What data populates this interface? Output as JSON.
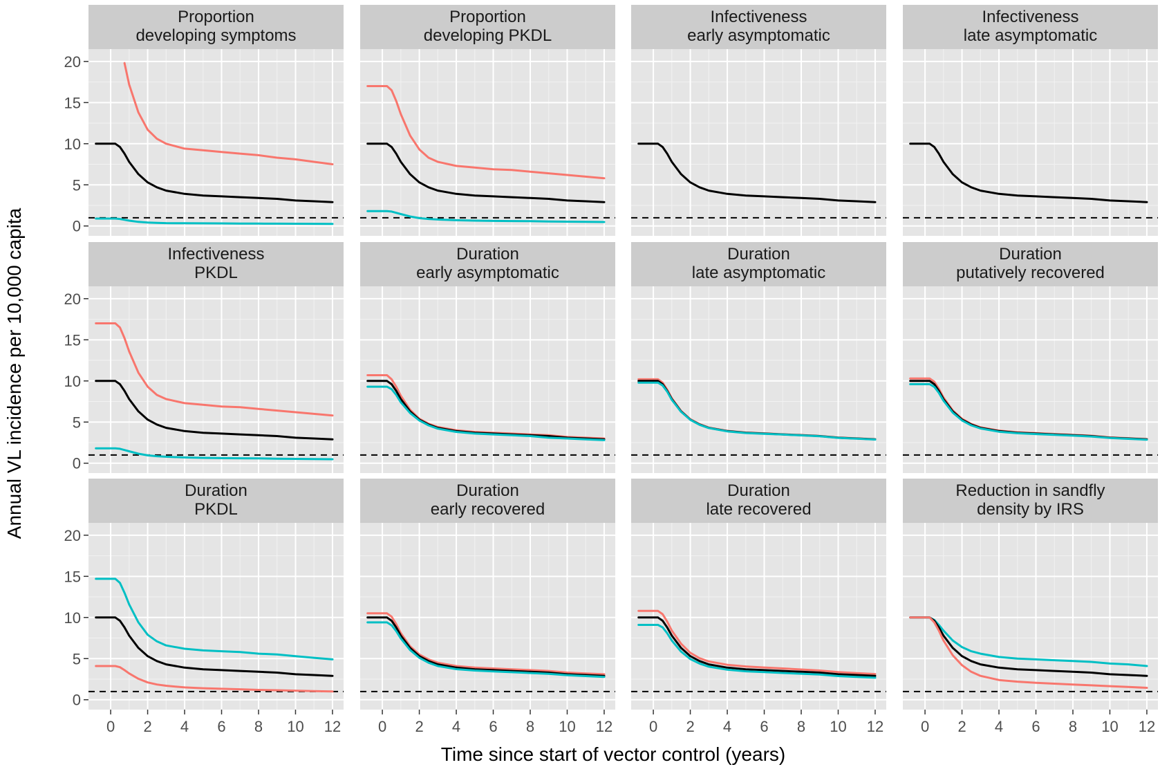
{
  "figure": {
    "xlabel": "Time since start of vector control (years)",
    "ylabel": "Annual VL incidence per 10,000 capita"
  },
  "colors": {
    "baseline": "#000000",
    "series_a": "#F8766D",
    "series_b": "#00BFC4",
    "panel_bg": "#E5E5E5",
    "strip_bg": "#CCCCCC",
    "grid_major": "#FFFFFF",
    "grid_minor": "#F2F2F2",
    "threshold": "#000000"
  },
  "chart_data": {
    "type": "line",
    "layout": {
      "rows": 3,
      "cols": 4
    },
    "xlim": [
      -1.2,
      12.6
    ],
    "ylim": [
      -1.2,
      21.5
    ],
    "x_ticks": [
      0,
      2,
      4,
      6,
      8,
      10,
      12
    ],
    "x_tick_labels": [
      "0",
      "2",
      "4",
      "6",
      "8",
      "10",
      "12"
    ],
    "y_ticks": [
      0,
      5,
      10,
      15,
      20
    ],
    "y_tick_labels": [
      "0",
      "5",
      "10",
      "15",
      "20"
    ],
    "threshold": 1,
    "x": [
      -0.8,
      0,
      0.25,
      0.5,
      0.75,
      1,
      1.5,
      2,
      2.5,
      3,
      4,
      5,
      6,
      7,
      8,
      9,
      10,
      11,
      12
    ],
    "panels": [
      {
        "title_lines": [
          "Proportion",
          "developing symptoms"
        ],
        "series": [
          {
            "color_key": "series_a",
            "start": 0.6,
            "values": [
              null,
              null,
              null,
              null,
              19.8,
              17.2,
              13.8,
              11.7,
              10.6,
              10.0,
              9.4,
              9.2,
              9.0,
              8.8,
              8.6,
              8.3,
              8.1,
              7.8,
              7.5
            ]
          },
          {
            "color_key": "baseline",
            "values": [
              10.0,
              10.0,
              10.0,
              9.6,
              8.8,
              7.8,
              6.3,
              5.3,
              4.7,
              4.3,
              3.9,
              3.7,
              3.6,
              3.5,
              3.4,
              3.3,
              3.1,
              3.0,
              2.9
            ]
          },
          {
            "color_key": "series_b",
            "values": [
              0.9,
              0.9,
              0.9,
              0.85,
              0.75,
              0.65,
              0.5,
              0.42,
              0.38,
              0.35,
              0.33,
              0.32,
              0.31,
              0.3,
              0.29,
              0.28,
              0.27,
              0.26,
              0.25
            ]
          }
        ]
      },
      {
        "title_lines": [
          "Proportion",
          "developing PKDL"
        ],
        "series": [
          {
            "color_key": "series_a",
            "values": [
              17.0,
              17.0,
              17.0,
              16.5,
              15.2,
              13.6,
              11.0,
              9.3,
              8.3,
              7.8,
              7.3,
              7.1,
              6.9,
              6.8,
              6.6,
              6.4,
              6.2,
              6.0,
              5.8
            ]
          },
          {
            "color_key": "baseline",
            "values": [
              10.0,
              10.0,
              10.0,
              9.6,
              8.8,
              7.8,
              6.3,
              5.3,
              4.7,
              4.3,
              3.9,
              3.7,
              3.6,
              3.5,
              3.4,
              3.3,
              3.1,
              3.0,
              2.9
            ]
          },
          {
            "color_key": "series_b",
            "values": [
              1.8,
              1.8,
              1.8,
              1.75,
              1.6,
              1.45,
              1.15,
              0.95,
              0.85,
              0.78,
              0.7,
              0.65,
              0.62,
              0.6,
              0.58,
              0.55,
              0.52,
              0.5,
              0.48
            ]
          }
        ]
      },
      {
        "title_lines": [
          "Infectiveness",
          "early asymptomatic"
        ],
        "series": [
          {
            "color_key": "baseline",
            "values": [
              10.0,
              10.0,
              10.0,
              9.6,
              8.8,
              7.8,
              6.3,
              5.3,
              4.7,
              4.3,
              3.9,
              3.7,
              3.6,
              3.5,
              3.4,
              3.3,
              3.1,
              3.0,
              2.9
            ]
          }
        ]
      },
      {
        "title_lines": [
          "Infectiveness",
          "late asymptomatic"
        ],
        "series": [
          {
            "color_key": "baseline",
            "values": [
              10.0,
              10.0,
              10.0,
              9.6,
              8.8,
              7.8,
              6.3,
              5.3,
              4.7,
              4.3,
              3.9,
              3.7,
              3.6,
              3.5,
              3.4,
              3.3,
              3.1,
              3.0,
              2.9
            ]
          }
        ]
      },
      {
        "title_lines": [
          "Infectiveness",
          "PKDL"
        ],
        "series": [
          {
            "color_key": "series_a",
            "values": [
              17.0,
              17.0,
              17.0,
              16.5,
              15.2,
              13.6,
              11.0,
              9.3,
              8.3,
              7.8,
              7.3,
              7.1,
              6.9,
              6.8,
              6.6,
              6.4,
              6.2,
              6.0,
              5.8
            ]
          },
          {
            "color_key": "baseline",
            "values": [
              10.0,
              10.0,
              10.0,
              9.6,
              8.8,
              7.8,
              6.3,
              5.3,
              4.7,
              4.3,
              3.9,
              3.7,
              3.6,
              3.5,
              3.4,
              3.3,
              3.1,
              3.0,
              2.9
            ]
          },
          {
            "color_key": "series_b",
            "values": [
              1.8,
              1.8,
              1.8,
              1.75,
              1.6,
              1.45,
              1.15,
              0.95,
              0.85,
              0.78,
              0.7,
              0.65,
              0.62,
              0.6,
              0.58,
              0.55,
              0.52,
              0.5,
              0.48
            ]
          }
        ]
      },
      {
        "title_lines": [
          "Duration",
          "early asymptomatic"
        ],
        "series": [
          {
            "color_key": "series_a",
            "values": [
              10.7,
              10.7,
              10.7,
              10.2,
              9.3,
              8.2,
              6.5,
              5.4,
              4.8,
              4.4,
              4.0,
              3.8,
              3.7,
              3.6,
              3.5,
              3.4,
              3.2,
              3.1,
              3.0
            ]
          },
          {
            "color_key": "baseline",
            "values": [
              10.0,
              10.0,
              10.0,
              9.6,
              8.8,
              7.8,
              6.3,
              5.3,
              4.7,
              4.3,
              3.9,
              3.7,
              3.6,
              3.5,
              3.4,
              3.3,
              3.1,
              3.0,
              2.9
            ]
          },
          {
            "color_key": "series_b",
            "values": [
              9.3,
              9.3,
              9.3,
              9.0,
              8.3,
              7.4,
              6.1,
              5.2,
              4.6,
              4.2,
              3.8,
              3.6,
              3.5,
              3.4,
              3.3,
              3.1,
              3.0,
              2.9,
              2.8
            ]
          }
        ]
      },
      {
        "title_lines": [
          "Duration",
          "late asymptomatic"
        ],
        "series": [
          {
            "color_key": "series_a",
            "values": [
              10.2,
              10.2,
              10.2,
              9.8,
              8.95,
              7.9,
              6.35,
              5.35,
              4.75,
              4.33,
              3.93,
              3.73,
              3.63,
              3.52,
              3.42,
              3.31,
              3.12,
              3.02,
              2.92
            ]
          },
          {
            "color_key": "baseline",
            "values": [
              10.0,
              10.0,
              10.0,
              9.6,
              8.8,
              7.8,
              6.3,
              5.3,
              4.7,
              4.3,
              3.9,
              3.7,
              3.6,
              3.5,
              3.4,
              3.3,
              3.1,
              3.0,
              2.9
            ]
          },
          {
            "color_key": "series_b",
            "values": [
              9.8,
              9.8,
              9.8,
              9.45,
              8.7,
              7.7,
              6.25,
              5.27,
              4.67,
              4.27,
              3.87,
              3.67,
              3.57,
              3.48,
              3.38,
              3.28,
              3.08,
              2.98,
              2.88
            ]
          }
        ]
      },
      {
        "title_lines": [
          "Duration",
          "putatively recovered"
        ],
        "series": [
          {
            "color_key": "series_a",
            "values": [
              10.3,
              10.3,
              10.3,
              9.9,
              9.05,
              8.0,
              6.42,
              5.4,
              4.78,
              4.36,
              3.96,
              3.76,
              3.65,
              3.55,
              3.45,
              3.34,
              3.14,
              3.04,
              2.94
            ]
          },
          {
            "color_key": "baseline",
            "values": [
              10.0,
              10.0,
              10.0,
              9.6,
              8.8,
              7.8,
              6.3,
              5.3,
              4.7,
              4.3,
              3.9,
              3.7,
              3.6,
              3.5,
              3.4,
              3.3,
              3.1,
              3.0,
              2.9
            ]
          },
          {
            "color_key": "series_b",
            "values": [
              9.6,
              9.6,
              9.6,
              9.28,
              8.55,
              7.6,
              6.15,
              5.2,
              4.6,
              4.22,
              3.83,
              3.64,
              3.54,
              3.45,
              3.35,
              3.25,
              3.06,
              2.96,
              2.86
            ]
          }
        ]
      },
      {
        "title_lines": [
          "Duration",
          "PKDL"
        ],
        "series": [
          {
            "color_key": "series_b",
            "values": [
              14.7,
              14.7,
              14.7,
              14.2,
              13.0,
              11.6,
              9.4,
              7.9,
              7.1,
              6.6,
              6.2,
              6.0,
              5.9,
              5.8,
              5.6,
              5.5,
              5.3,
              5.1,
              4.9
            ]
          },
          {
            "color_key": "baseline",
            "values": [
              10.0,
              10.0,
              10.0,
              9.6,
              8.8,
              7.8,
              6.3,
              5.3,
              4.7,
              4.3,
              3.9,
              3.7,
              3.6,
              3.5,
              3.4,
              3.3,
              3.1,
              3.0,
              2.9
            ]
          },
          {
            "color_key": "series_a",
            "values": [
              4.1,
              4.1,
              4.1,
              3.95,
              3.6,
              3.2,
              2.55,
              2.1,
              1.85,
              1.7,
              1.5,
              1.4,
              1.33,
              1.27,
              1.2,
              1.15,
              1.1,
              1.05,
              1.0
            ]
          }
        ]
      },
      {
        "title_lines": [
          "Duration",
          "early recovered"
        ],
        "series": [
          {
            "color_key": "series_a",
            "values": [
              10.5,
              10.5,
              10.5,
              10.1,
              9.2,
              8.1,
              6.5,
              5.5,
              4.9,
              4.5,
              4.1,
              3.9,
              3.8,
              3.7,
              3.6,
              3.5,
              3.3,
              3.2,
              3.1
            ]
          },
          {
            "color_key": "baseline",
            "values": [
              10.0,
              10.0,
              10.0,
              9.6,
              8.8,
              7.8,
              6.3,
              5.3,
              4.7,
              4.3,
              3.9,
              3.7,
              3.6,
              3.5,
              3.4,
              3.3,
              3.1,
              3.0,
              2.9
            ]
          },
          {
            "color_key": "series_b",
            "values": [
              9.4,
              9.4,
              9.4,
              9.05,
              8.35,
              7.45,
              6.05,
              5.1,
              4.5,
              4.1,
              3.72,
              3.55,
              3.45,
              3.35,
              3.25,
              3.15,
              2.98,
              2.88,
              2.78
            ]
          }
        ]
      },
      {
        "title_lines": [
          "Duration",
          "late recovered"
        ],
        "series": [
          {
            "color_key": "series_a",
            "values": [
              10.8,
              10.8,
              10.8,
              10.4,
              9.5,
              8.4,
              6.8,
              5.7,
              5.05,
              4.65,
              4.25,
              4.05,
              3.92,
              3.8,
              3.68,
              3.55,
              3.36,
              3.24,
              3.12
            ]
          },
          {
            "color_key": "baseline",
            "values": [
              10.0,
              10.0,
              10.0,
              9.6,
              8.8,
              7.8,
              6.3,
              5.3,
              4.7,
              4.3,
              3.9,
              3.7,
              3.6,
              3.5,
              3.4,
              3.3,
              3.1,
              3.0,
              2.9
            ]
          },
          {
            "color_key": "series_b",
            "values": [
              9.1,
              9.1,
              9.1,
              8.8,
              8.1,
              7.2,
              5.85,
              4.95,
              4.4,
              4.02,
              3.65,
              3.46,
              3.36,
              3.26,
              3.16,
              3.06,
              2.88,
              2.78,
              2.68
            ]
          }
        ]
      },
      {
        "title_lines": [
          "Reduction in sandfly",
          "density by IRS"
        ],
        "series": [
          {
            "color_key": "series_b",
            "values": [
              10.0,
              10.0,
              10.0,
              9.7,
              9.1,
              8.4,
              7.2,
              6.4,
              5.9,
              5.6,
              5.2,
              5.0,
              4.9,
              4.8,
              4.7,
              4.6,
              4.4,
              4.3,
              4.1
            ]
          },
          {
            "color_key": "baseline",
            "values": [
              10.0,
              10.0,
              10.0,
              9.6,
              8.8,
              7.8,
              6.3,
              5.3,
              4.7,
              4.3,
              3.9,
              3.7,
              3.6,
              3.5,
              3.4,
              3.3,
              3.1,
              3.0,
              2.9
            ]
          },
          {
            "color_key": "series_a",
            "values": [
              10.0,
              10.0,
              10.0,
              9.4,
              8.4,
              7.2,
              5.4,
              4.2,
              3.4,
              2.9,
              2.4,
              2.2,
              2.05,
              1.95,
              1.85,
              1.75,
              1.65,
              1.55,
              1.45
            ]
          }
        ]
      }
    ]
  }
}
